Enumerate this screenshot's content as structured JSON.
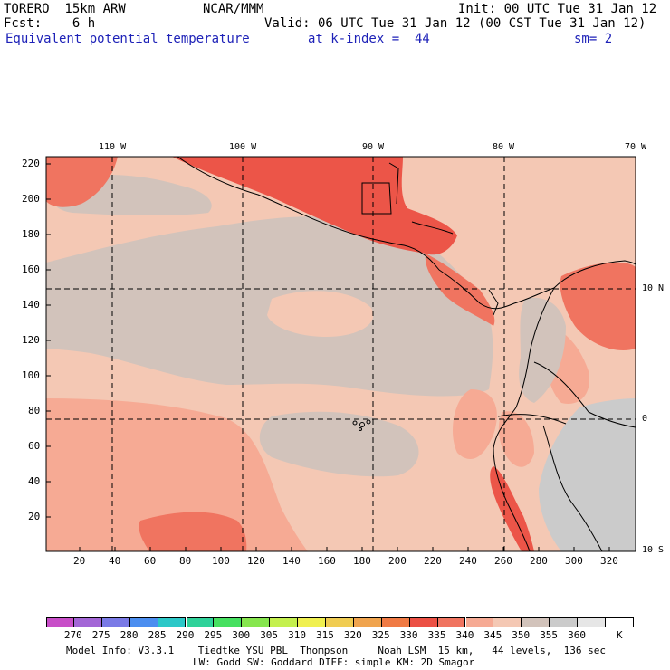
{
  "header": {
    "model": "TORERO  15km ARW",
    "center": "NCAR/MMM",
    "init": "Init: 00 UTC Tue 31 Jan 12",
    "fcst": "Fcst:    6 h",
    "valid": "Valid: 06 UTC Tue 31 Jan 12 (00 CST Tue 31 Jan 12)",
    "field": "Equivalent potential temperature",
    "level": "at k-index =  44",
    "smooth": "sm= 2"
  },
  "axes": {
    "top_lon_labels": [
      "110 W",
      "100 W",
      "90 W",
      "80 W",
      "70 W"
    ],
    "right_lat_labels": [
      "10 N",
      "0",
      "10 S"
    ],
    "x_ticks": [
      "20",
      "40",
      "60",
      "80",
      "100",
      "120",
      "140",
      "160",
      "180",
      "200",
      "220",
      "240",
      "260",
      "280",
      "300",
      "320"
    ],
    "y_ticks": [
      "220",
      "200",
      "180",
      "160",
      "140",
      "120",
      "100",
      "80",
      "60",
      "40",
      "20"
    ]
  },
  "colors": {
    "c340": "#f4c8b4",
    "c345": "#d2c3bb",
    "c335": "#f6aa94",
    "c330": "#f07460",
    "c325": "#ec5548",
    "c350": "#cbcbcb",
    "grid_line": "#000000"
  },
  "colorbar": {
    "colors": [
      "#c84ec8",
      "#a366d6",
      "#7a7ae6",
      "#4b8ef0",
      "#2cc8c8",
      "#2fd29a",
      "#46e060",
      "#86e64e",
      "#c4f04e",
      "#f0f050",
      "#f0cc52",
      "#f0a44e",
      "#f07a44",
      "#ec5044",
      "#f07460",
      "#f6aa94",
      "#f4c8b4",
      "#d2c3bb",
      "#cbcbcb",
      "#e6e6e6",
      "#ffffff"
    ],
    "labels": [
      "270",
      "275",
      "280",
      "285",
      "290",
      "295",
      "300",
      "305",
      "310",
      "315",
      "320",
      "325",
      "330",
      "335",
      "340",
      "345",
      "350",
      "355",
      "360",
      "K"
    ]
  },
  "footer": {
    "line1": "Model Info: V3.3.1    Tiedtke YSU PBL  Thompson     Noah LSM  15 km,   44 levels,  136 sec",
    "line2": "LW: Godd SW: Goddard DIFF: simple KM: 2D Smagor"
  }
}
